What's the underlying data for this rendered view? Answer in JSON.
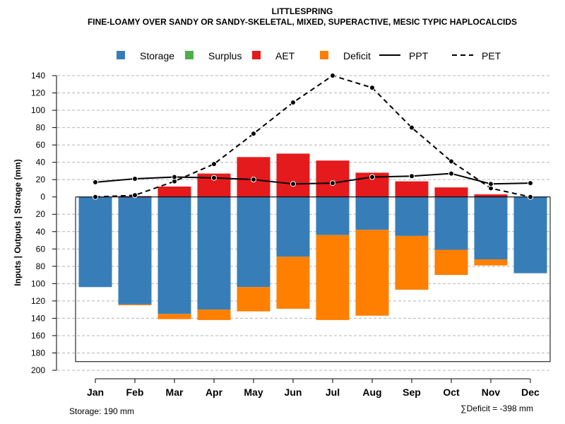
{
  "chart_data": {
    "type": "bar",
    "title": "LITTLESPRING",
    "subtitle": "FINE-LOAMY OVER SANDY OR SANDY-SKELETAL, MIXED, SUPERACTIVE, MESIC TYPIC HAPLOCALCIDS",
    "ylabel": "Inputs | Outputs | Storage     (mm)",
    "categories": [
      "Jan",
      "Feb",
      "Mar",
      "Apr",
      "May",
      "Jun",
      "Jul",
      "Aug",
      "Sep",
      "Oct",
      "Nov",
      "Dec"
    ],
    "ylim": [
      -200,
      140
    ],
    "yticks": [
      140,
      120,
      100,
      80,
      60,
      40,
      20,
      0,
      -20,
      -40,
      -60,
      -80,
      -100,
      -120,
      -140,
      -160,
      -180,
      -200
    ],
    "ytick_labels": [
      "140",
      "120",
      "100",
      "80",
      "60",
      "40",
      "20",
      "0",
      "20",
      "40",
      "60",
      "80",
      "100",
      "120",
      "140",
      "160",
      "180",
      "200"
    ],
    "grid": true,
    "legend": {
      "placement": "top",
      "items": [
        {
          "label": "Storage",
          "kind": "box",
          "color": "#377EB8"
        },
        {
          "label": "Surplus",
          "kind": "box",
          "color": "#4DAF4A"
        },
        {
          "label": "AET",
          "kind": "box",
          "color": "#E41A1C"
        },
        {
          "label": "Deficit",
          "kind": "box",
          "color": "#FF7F00"
        },
        {
          "label": "PPT",
          "kind": "solid-line",
          "color": "#000000"
        },
        {
          "label": "PET",
          "kind": "dashed-line",
          "color": "#000000"
        }
      ]
    },
    "series": [
      {
        "name": "AET",
        "color": "#E41A1C",
        "values": [
          0,
          1,
          12,
          27,
          46,
          50,
          42,
          28,
          18,
          11,
          3,
          0
        ]
      },
      {
        "name": "Storage",
        "color": "#377EB8",
        "values": [
          104,
          124,
          135,
          130,
          104,
          69,
          44,
          38,
          45,
          61,
          72,
          88
        ]
      },
      {
        "name": "Deficit",
        "color": "#FF7F00",
        "values": [
          0,
          1,
          6,
          12,
          28,
          60,
          98,
          99,
          62,
          29,
          7,
          0
        ]
      },
      {
        "name": "Surplus",
        "color": "#4DAF4A",
        "values": [
          0,
          0,
          0,
          0,
          0,
          0,
          0,
          0,
          0,
          0,
          0,
          0
        ]
      },
      {
        "name": "PPT",
        "color": "#000000",
        "values": [
          17,
          21,
          23,
          22,
          20,
          15,
          16,
          23,
          24,
          27,
          15,
          16
        ]
      },
      {
        "name": "PET",
        "color": "#000000",
        "values": [
          0,
          2,
          18,
          38,
          73,
          109,
          140,
          126,
          80,
          41,
          10,
          0
        ]
      }
    ],
    "storage_capacity": 190,
    "footnote_storage": "Storage: 190 mm",
    "footnote_deficit": "∑Deficit = -398 mm"
  }
}
